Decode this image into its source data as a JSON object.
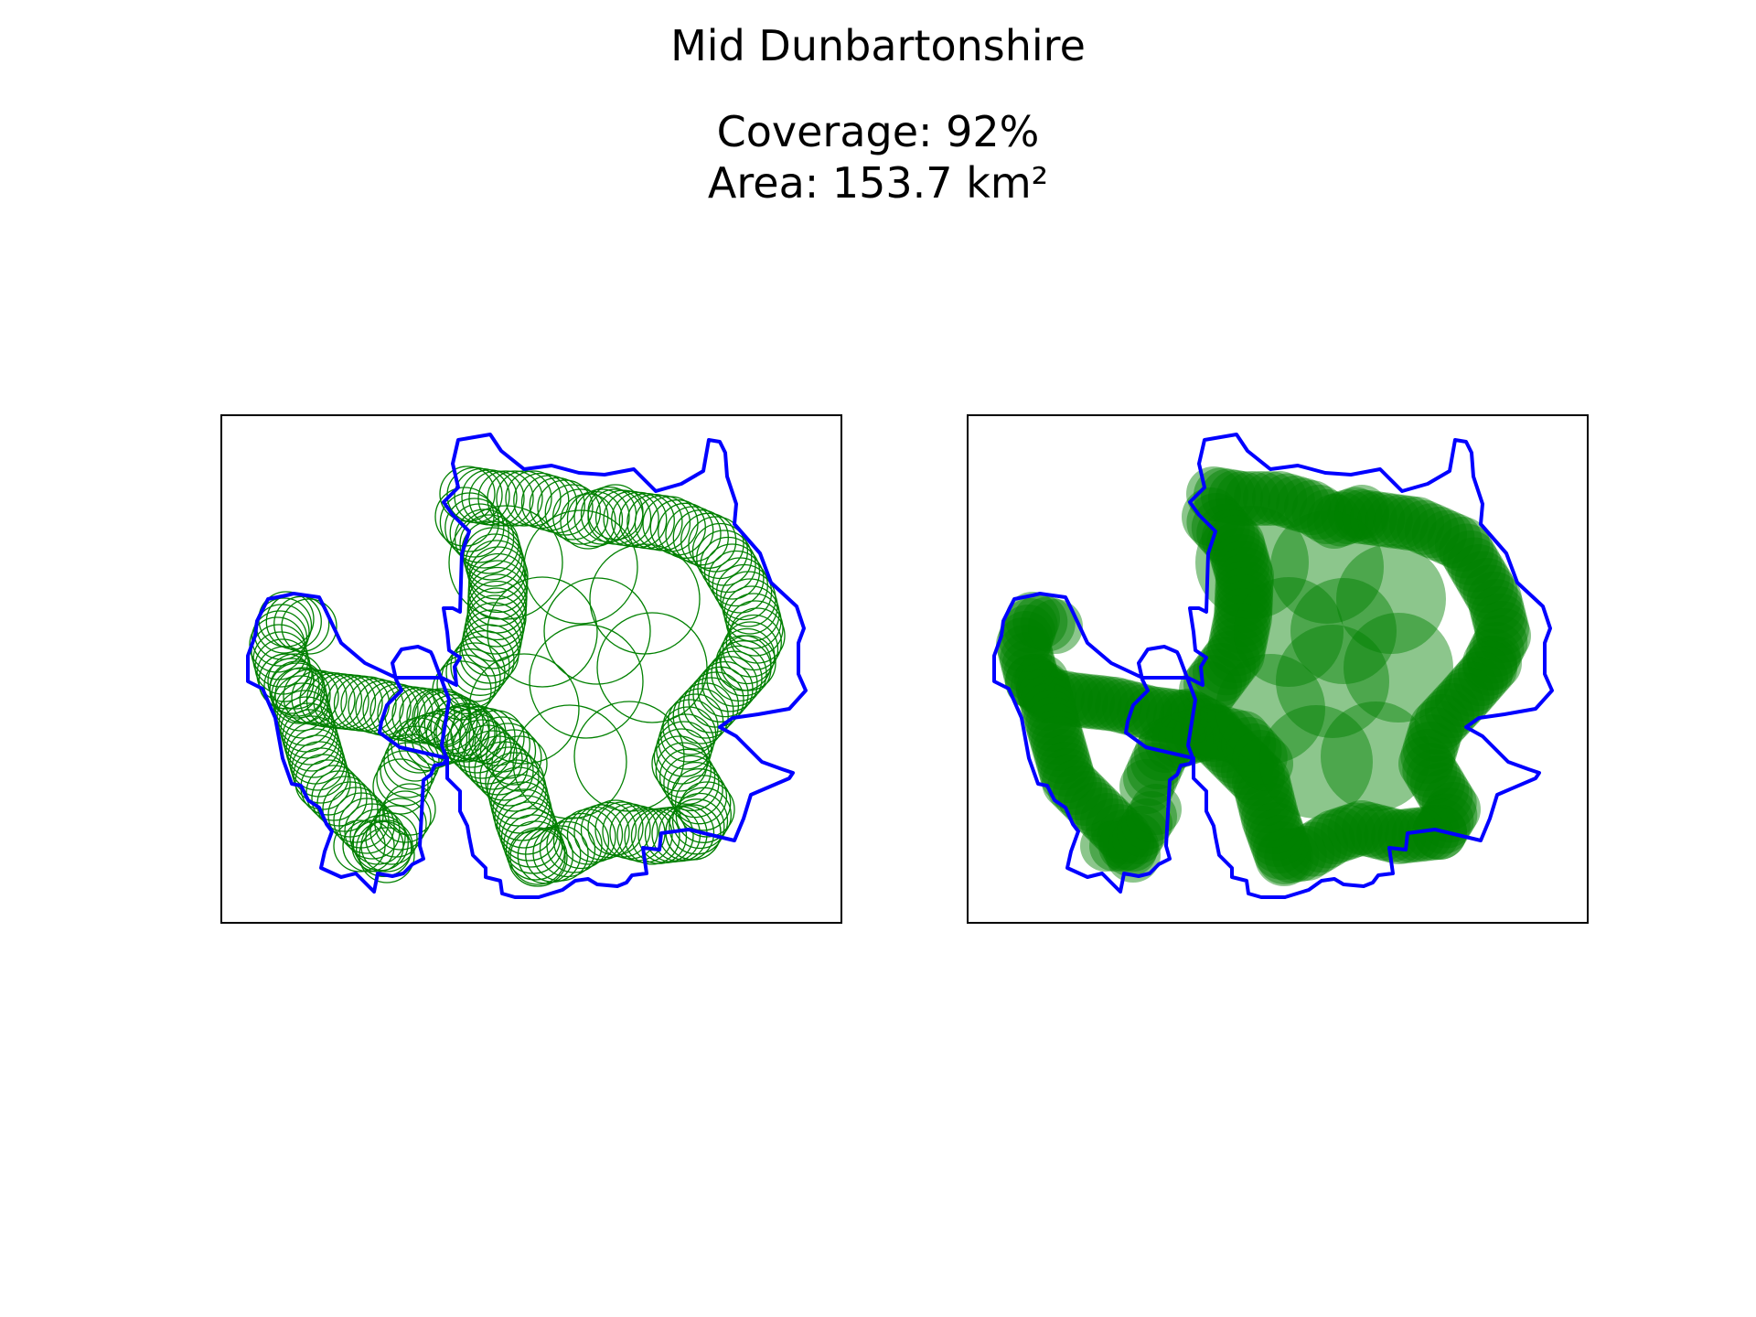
{
  "title": "Mid Dunbartonshire",
  "coverage_label": "Coverage: 92%",
  "area_label": "Area: 153.7 km²",
  "coverage": 0.92,
  "colors": {
    "boundary": "#0000ff",
    "circles": "#008000",
    "frame": "#000000",
    "background": "#ffffff"
  },
  "panels": [
    {
      "name": "circle-outline-map",
      "style": "outline"
    },
    {
      "name": "circle-filled-map",
      "style": "filled"
    }
  ]
}
